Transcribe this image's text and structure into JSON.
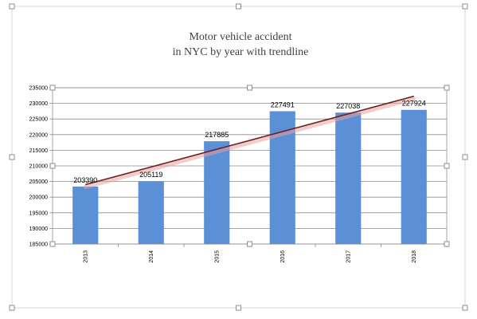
{
  "chart_data": {
    "type": "bar",
    "title_lines": [
      "Motor vehicle accident",
      "in NYC  by year with trendline"
    ],
    "xlabel": "",
    "ylabel": "",
    "categories": [
      "2013",
      "2014",
      "2015",
      "2016",
      "2017",
      "2018"
    ],
    "values": [
      203390,
      205119,
      217885,
      227491,
      227038,
      227924
    ],
    "data_labels": [
      "203390",
      "205119",
      "217885",
      "227491",
      "227038",
      "227924"
    ],
    "ylim": [
      185000,
      235000
    ],
    "y_ticks": [
      "185000",
      "190000",
      "195000",
      "200000",
      "205000",
      "210000",
      "215000",
      "220000",
      "225000",
      "230000",
      "235000"
    ],
    "grid": true,
    "legend": "none",
    "trendline": {
      "type": "linear",
      "color": "#6b1f1f"
    },
    "colors": {
      "bar": "#5b8fd6",
      "grid": "#8c8c8c",
      "trend_glow": "#e8a0a0"
    }
  }
}
